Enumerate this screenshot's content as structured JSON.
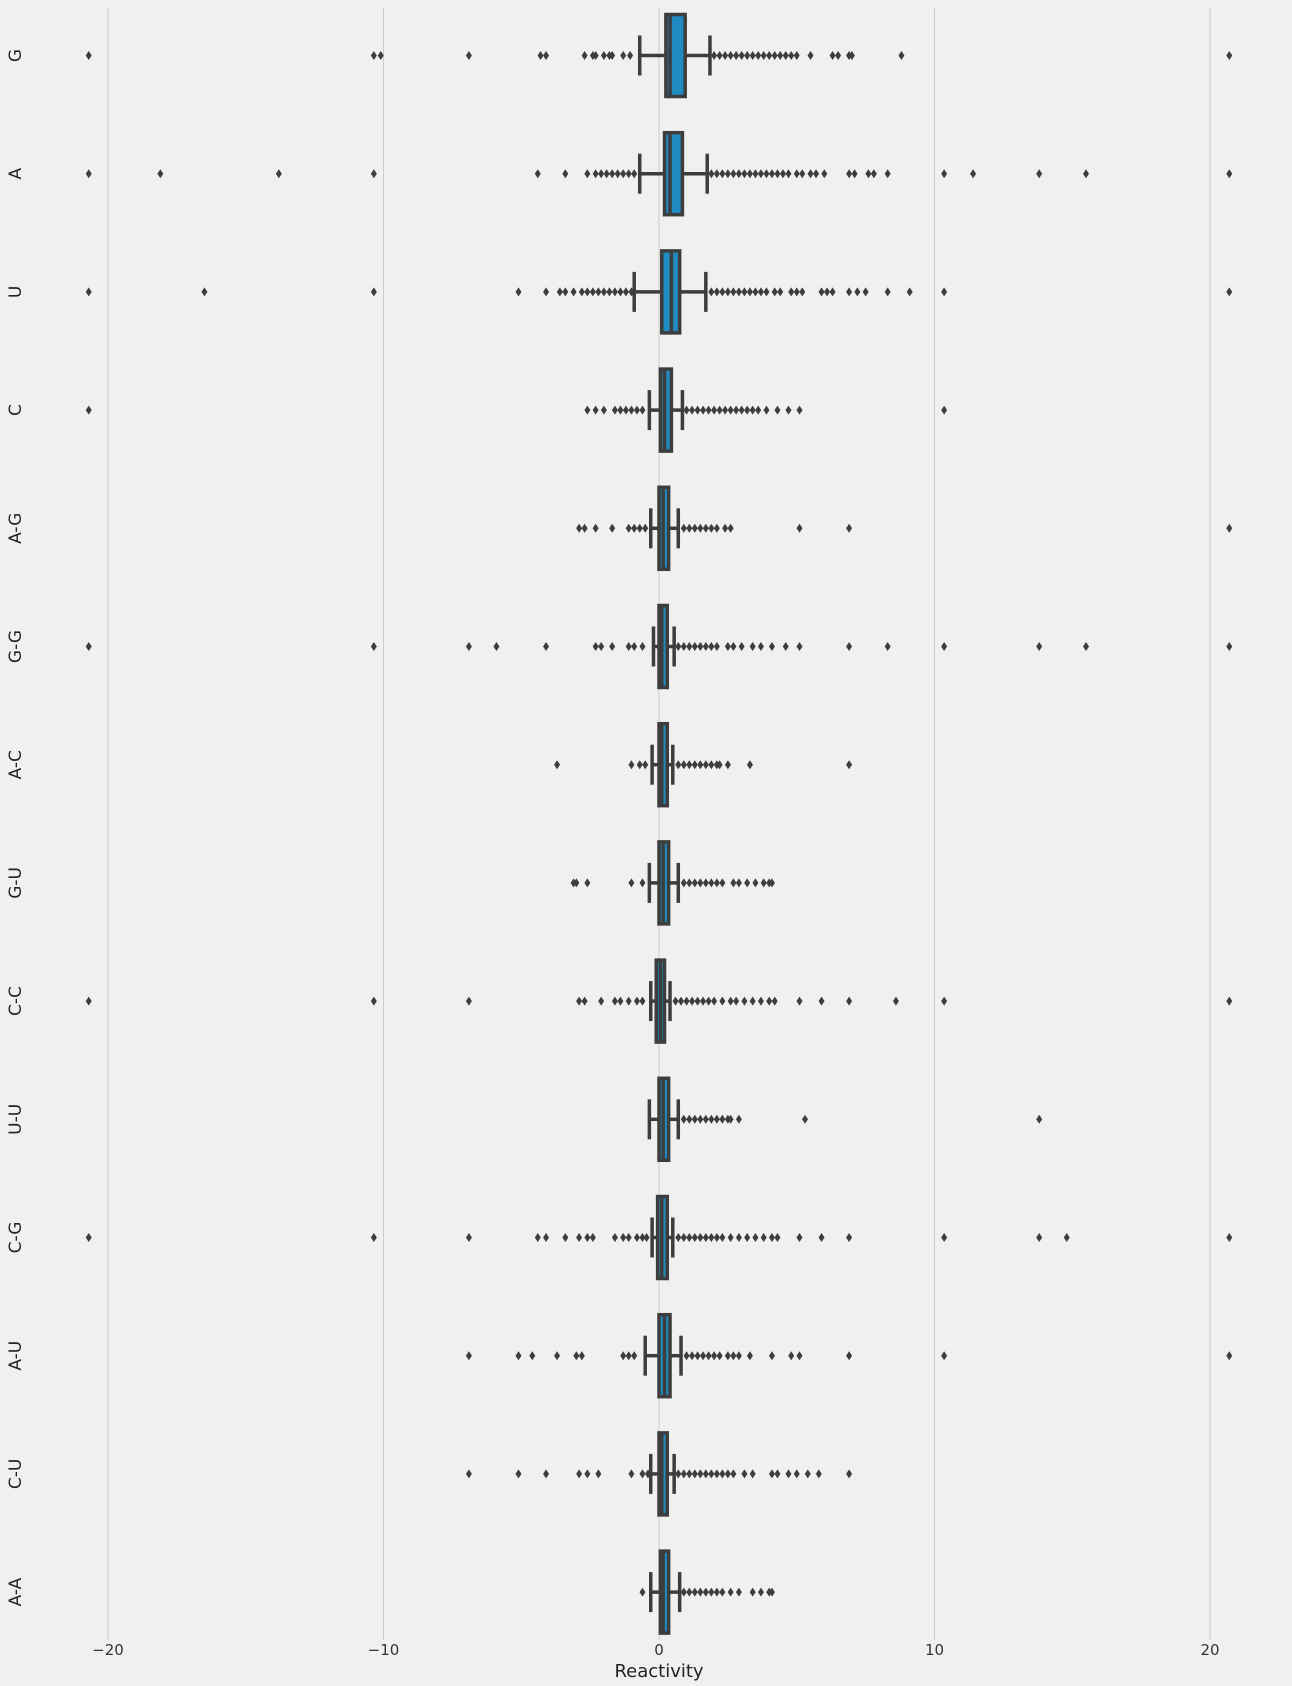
{
  "chart_data": {
    "type": "boxplot",
    "orientation": "horizontal",
    "xlabel": "Reactivity",
    "ylabel": "",
    "xlim": [
      -22.7,
      22.7
    ],
    "xticks": [
      -20,
      -10,
      0,
      10,
      20
    ],
    "xtick_labels": [
      "−20",
      "−10",
      "0",
      "10",
      "20"
    ],
    "grid": "vertical",
    "colors": {
      "background": "#f0f0f0",
      "grid": "#cbcbcb",
      "box": "#1f8bc0",
      "line": "#3d3d3d"
    },
    "series": [
      {
        "name": "G",
        "q1": 0.25,
        "median": 0.4,
        "q3": 0.95,
        "whisker_low": -0.7,
        "whisker_high": 1.85,
        "outliers": [
          -20.7,
          -10.35,
          -10.1,
          -6.9,
          -4.3,
          -4.1,
          -2.7,
          -2.4,
          -2.3,
          -2.0,
          -1.8,
          -1.7,
          -1.3,
          -1.05,
          2.0,
          2.2,
          2.4,
          2.6,
          2.8,
          3.0,
          3.2,
          3.4,
          3.6,
          3.8,
          4.0,
          4.2,
          4.4,
          4.6,
          4.8,
          5.0,
          5.5,
          6.3,
          6.5,
          6.9,
          7.0,
          8.8,
          20.7
        ]
      },
      {
        "name": "A",
        "q1": 0.2,
        "median": 0.4,
        "q3": 0.85,
        "whisker_low": -0.7,
        "whisker_high": 1.75,
        "outliers": [
          -20.7,
          -18.1,
          -13.8,
          -10.35,
          -4.4,
          -3.4,
          -2.6,
          -2.3,
          -2.1,
          -1.9,
          -1.7,
          -1.5,
          -1.3,
          -1.1,
          -0.9,
          1.9,
          2.1,
          2.3,
          2.5,
          2.7,
          2.9,
          3.1,
          3.3,
          3.5,
          3.7,
          3.9,
          4.1,
          4.3,
          4.5,
          4.7,
          5.0,
          5.2,
          5.5,
          5.7,
          6.0,
          6.9,
          7.1,
          7.6,
          7.8,
          8.3,
          10.35,
          11.4,
          13.8,
          15.5,
          20.7
        ]
      },
      {
        "name": "U",
        "q1": 0.1,
        "median": 0.45,
        "q3": 0.75,
        "whisker_low": -0.9,
        "whisker_high": 1.7,
        "outliers": [
          -20.7,
          -16.5,
          -10.35,
          -5.1,
          -4.1,
          -3.6,
          -3.4,
          -3.1,
          -2.8,
          -2.6,
          -2.4,
          -2.2,
          -2.0,
          -1.8,
          -1.6,
          -1.4,
          -1.2,
          -1.0,
          1.9,
          2.1,
          2.3,
          2.5,
          2.7,
          2.9,
          3.1,
          3.3,
          3.5,
          3.7,
          3.9,
          4.2,
          4.4,
          4.8,
          5.0,
          5.2,
          5.9,
          6.1,
          6.3,
          6.9,
          7.2,
          7.5,
          8.3,
          9.1,
          10.35,
          20.7
        ]
      },
      {
        "name": "C",
        "q1": 0.05,
        "median": 0.2,
        "q3": 0.45,
        "whisker_low": -0.35,
        "whisker_high": 0.85,
        "outliers": [
          -20.7,
          -2.6,
          -2.3,
          -2.0,
          -1.6,
          -1.4,
          -1.2,
          -1.0,
          -0.8,
          -0.6,
          1.0,
          1.2,
          1.4,
          1.6,
          1.8,
          2.0,
          2.2,
          2.4,
          2.6,
          2.8,
          3.0,
          3.2,
          3.4,
          3.6,
          3.9,
          4.3,
          4.7,
          5.1,
          10.35
        ]
      },
      {
        "name": "A-G",
        "q1": 0.0,
        "median": 0.15,
        "q3": 0.35,
        "whisker_low": -0.3,
        "whisker_high": 0.7,
        "outliers": [
          -2.9,
          -2.7,
          -2.3,
          -1.7,
          -1.1,
          -0.9,
          -0.7,
          -0.5,
          0.9,
          1.1,
          1.3,
          1.5,
          1.7,
          1.9,
          2.1,
          2.4,
          2.6,
          5.1,
          6.9,
          20.7
        ]
      },
      {
        "name": "G-G",
        "q1": 0.0,
        "median": 0.1,
        "q3": 0.3,
        "whisker_low": -0.2,
        "whisker_high": 0.55,
        "outliers": [
          -20.7,
          -10.35,
          -6.9,
          -5.9,
          -4.1,
          -2.3,
          -2.1,
          -1.7,
          -1.1,
          -0.9,
          -0.6,
          0.7,
          0.9,
          1.1,
          1.3,
          1.5,
          1.7,
          1.9,
          2.1,
          2.5,
          2.7,
          3.0,
          3.4,
          3.7,
          4.1,
          4.6,
          5.1,
          6.9,
          8.3,
          10.35,
          13.8,
          15.5,
          20.7
        ]
      },
      {
        "name": "A-C",
        "q1": 0.0,
        "median": 0.1,
        "q3": 0.3,
        "whisker_low": -0.25,
        "whisker_high": 0.5,
        "outliers": [
          -3.7,
          -1.0,
          -0.7,
          -0.5,
          0.7,
          0.9,
          1.1,
          1.3,
          1.5,
          1.7,
          1.9,
          2.1,
          2.2,
          2.5,
          3.3,
          6.9
        ]
      },
      {
        "name": "G-U",
        "q1": 0.0,
        "median": 0.15,
        "q3": 0.35,
        "whisker_low": -0.35,
        "whisker_high": 0.7,
        "outliers": [
          -3.1,
          -3.0,
          -2.6,
          -1.0,
          -0.6,
          0.9,
          1.1,
          1.3,
          1.5,
          1.7,
          1.9,
          2.1,
          2.3,
          2.7,
          2.9,
          3.2,
          3.5,
          3.8,
          4.0,
          4.1
        ]
      },
      {
        "name": "C-C",
        "q1": -0.1,
        "median": 0.05,
        "q3": 0.2,
        "whisker_low": -0.3,
        "whisker_high": 0.4,
        "outliers": [
          -20.7,
          -10.35,
          -6.9,
          -2.9,
          -2.7,
          -2.1,
          -1.6,
          -1.4,
          -1.1,
          -0.8,
          -0.6,
          0.6,
          0.8,
          1.0,
          1.2,
          1.4,
          1.6,
          1.8,
          2.0,
          2.3,
          2.6,
          2.8,
          3.1,
          3.4,
          3.7,
          4.0,
          4.2,
          5.1,
          5.9,
          6.9,
          8.6,
          10.35,
          20.7
        ]
      },
      {
        "name": "U-U",
        "q1": 0.0,
        "median": 0.15,
        "q3": 0.35,
        "whisker_low": -0.35,
        "whisker_high": 0.7,
        "outliers": [
          0.9,
          1.1,
          1.3,
          1.5,
          1.7,
          1.9,
          2.1,
          2.3,
          2.5,
          2.6,
          2.9,
          5.3,
          13.8
        ]
      },
      {
        "name": "C-G",
        "q1": -0.05,
        "median": 0.1,
        "q3": 0.3,
        "whisker_low": -0.25,
        "whisker_high": 0.5,
        "outliers": [
          -20.7,
          -10.35,
          -6.9,
          -4.4,
          -4.1,
          -3.4,
          -2.9,
          -2.6,
          -2.4,
          -1.6,
          -1.3,
          -1.1,
          -0.8,
          -0.6,
          -0.45,
          0.7,
          0.9,
          1.1,
          1.3,
          1.5,
          1.7,
          1.9,
          2.1,
          2.3,
          2.6,
          2.9,
          3.2,
          3.5,
          3.8,
          4.1,
          4.3,
          5.1,
          5.9,
          6.9,
          10.35,
          13.8,
          14.8,
          20.7
        ]
      },
      {
        "name": "A-U",
        "q1": 0.0,
        "median": 0.2,
        "q3": 0.4,
        "whisker_low": -0.5,
        "whisker_high": 0.8,
        "outliers": [
          -6.9,
          -5.1,
          -4.6,
          -3.7,
          -3.0,
          -2.8,
          -1.3,
          -1.1,
          -0.9,
          1.0,
          1.2,
          1.4,
          1.6,
          1.8,
          2.0,
          2.2,
          2.5,
          2.7,
          2.9,
          3.3,
          4.1,
          4.8,
          5.1,
          6.9,
          10.35,
          20.7
        ]
      },
      {
        "name": "C-U",
        "q1": 0.0,
        "median": 0.1,
        "q3": 0.3,
        "whisker_low": -0.3,
        "whisker_high": 0.55,
        "outliers": [
          -6.9,
          -5.1,
          -4.1,
          -2.9,
          -2.6,
          -2.2,
          -1.0,
          -0.6,
          -0.4,
          0.7,
          0.9,
          1.1,
          1.3,
          1.5,
          1.7,
          1.9,
          2.1,
          2.3,
          2.5,
          2.7,
          3.1,
          3.4,
          4.1,
          4.3,
          4.7,
          5.0,
          5.4,
          5.8,
          6.9
        ]
      },
      {
        "name": "A-A",
        "q1": 0.05,
        "median": 0.15,
        "q3": 0.35,
        "whisker_low": -0.3,
        "whisker_high": 0.75,
        "outliers": [
          -0.6,
          0.9,
          1.1,
          1.3,
          1.5,
          1.7,
          1.9,
          2.1,
          2.3,
          2.6,
          2.9,
          3.4,
          3.7,
          4.0,
          4.1
        ]
      }
    ]
  }
}
